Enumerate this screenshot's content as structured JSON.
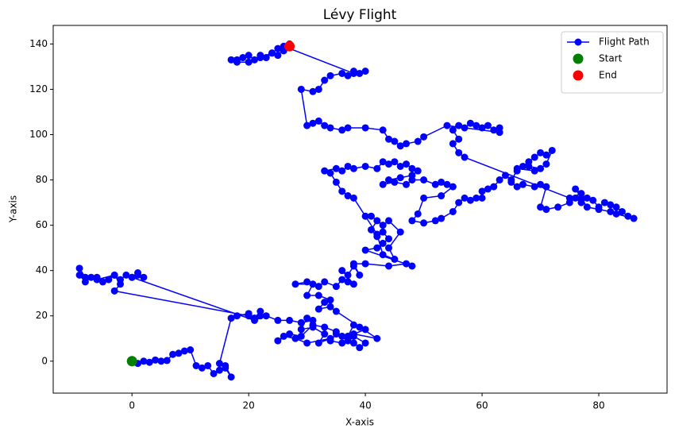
{
  "chart_data": {
    "type": "line",
    "title": "Lévy Flight",
    "x_label": "X-axis",
    "y_label": "Y-axis",
    "xlim": [
      -13.5,
      91.7
    ],
    "ylim": [
      -14.1,
      148.2
    ],
    "xticks": [
      0,
      20,
      40,
      60,
      80
    ],
    "yticks": [
      0,
      20,
      40,
      60,
      80,
      100,
      120,
      140
    ],
    "grid": false,
    "legend": "upper right",
    "series": [
      {
        "name": "Flight Path",
        "type": "line",
        "color": "#0000ff",
        "x": [
          0,
          1,
          2,
          3,
          4,
          5,
          6,
          7,
          8,
          9,
          10,
          11,
          12,
          13,
          14,
          15,
          16,
          17,
          16,
          15,
          17,
          18,
          20,
          21,
          22,
          22,
          21,
          20,
          -3,
          -2,
          -3,
          -4,
          -5,
          -6,
          -7,
          -8,
          -9,
          -9,
          -8,
          -6,
          -3,
          -2,
          -1,
          0,
          1,
          2,
          1,
          0,
          21,
          23,
          25,
          27,
          29,
          31,
          30,
          29,
          31,
          33,
          32,
          34,
          30,
          28,
          26,
          25,
          27,
          29,
          31,
          33,
          35,
          36,
          37,
          38,
          40,
          39,
          38,
          37,
          36,
          34,
          35,
          37,
          38,
          39,
          40,
          38,
          42,
          35,
          34,
          32,
          33,
          34,
          32,
          30,
          31,
          28,
          30,
          32,
          33,
          35,
          36,
          37,
          38,
          36,
          37,
          38,
          39,
          38,
          40,
          44,
          47,
          48,
          40,
          42,
          43,
          44,
          43,
          42,
          41,
          42,
          41,
          43,
          44,
          46,
          44,
          45,
          43,
          42,
          40,
          38,
          37,
          36,
          35,
          34,
          33,
          35,
          36,
          37,
          38,
          40,
          42,
          43,
          44,
          45,
          46,
          47,
          48,
          49,
          48,
          46,
          44,
          43,
          45,
          47,
          48,
          50,
          52,
          53,
          54,
          55,
          53,
          50,
          49,
          48,
          50,
          52,
          53,
          55,
          56,
          57,
          58,
          59,
          60,
          60,
          61,
          62,
          63,
          64,
          65,
          66,
          67,
          68,
          69,
          70,
          71,
          72,
          71,
          70,
          68,
          69,
          66,
          65,
          66,
          67,
          69,
          70,
          71,
          70,
          71,
          73,
          75,
          76,
          77,
          78,
          79,
          80,
          81,
          82,
          83,
          84,
          85,
          86,
          83,
          82,
          80,
          78,
          77,
          76,
          77,
          75,
          57,
          56,
          55,
          56,
          55,
          56,
          57,
          58,
          59,
          60,
          61,
          62,
          63,
          63,
          54,
          50,
          49,
          47,
          46,
          45,
          44,
          43,
          40,
          37,
          36,
          34,
          33,
          32,
          31,
          30,
          29,
          31,
          32,
          33,
          34,
          36,
          37,
          38,
          39,
          40,
          38,
          26,
          27,
          26,
          25,
          24,
          23,
          22,
          21,
          20,
          19,
          18,
          17,
          18,
          20,
          22,
          24,
          25,
          26,
          27
        ],
        "values": [
          0,
          -1,
          0,
          -0.5,
          0.5,
          0,
          0.3,
          3,
          3.5,
          4.5,
          5,
          -2,
          -3,
          -2,
          -5.5,
          -4,
          -3,
          -7,
          -2,
          -1,
          19,
          20,
          21,
          19,
          20,
          22,
          19,
          20,
          31,
          34,
          38,
          36,
          35,
          37,
          37,
          35,
          38,
          41,
          37,
          36,
          38,
          36,
          38,
          37,
          38,
          37,
          39,
          37,
          18,
          20,
          18,
          18,
          17,
          18,
          19,
          14,
          15,
          12,
          8,
          10,
          8,
          10,
          11,
          9,
          12,
          11,
          16,
          15,
          13,
          11,
          9,
          11,
          8,
          6,
          8,
          10,
          8,
          9,
          12,
          11,
          16,
          15,
          14,
          12,
          10,
          22,
          24,
          23,
          26,
          27,
          29,
          29,
          34,
          34,
          35,
          33,
          35,
          33,
          36,
          35,
          34,
          40,
          38,
          42,
          38,
          43,
          43,
          42,
          43,
          42,
          49,
          50,
          52,
          54,
          57,
          55,
          58,
          62,
          64,
          60,
          62,
          57,
          50,
          45,
          47,
          56,
          64,
          72,
          73,
          75,
          79,
          83,
          84,
          85,
          84,
          86,
          85,
          86,
          85,
          88,
          87,
          88,
          86,
          87,
          85,
          84,
          82,
          81,
          80,
          78,
          79,
          78,
          80,
          80,
          78,
          79,
          78,
          77,
          73,
          72,
          65,
          62,
          61,
          62,
          63,
          66,
          70,
          72,
          71,
          72,
          72,
          75,
          76,
          77,
          80,
          82,
          80,
          84,
          86,
          88,
          90,
          92,
          91,
          93,
          87,
          85,
          86,
          84,
          85,
          79,
          77,
          78,
          77,
          78,
          77,
          68,
          67,
          68,
          70,
          72,
          70,
          72,
          71,
          68,
          70,
          69,
          68,
          66,
          64,
          63,
          65,
          66,
          67,
          68,
          72,
          76,
          74,
          72,
          90,
          92,
          96,
          98,
          102,
          104,
          103,
          105,
          104,
          103,
          104,
          102,
          103,
          101,
          104,
          99,
          97,
          96,
          95,
          97,
          98,
          102,
          103,
          103,
          102,
          103,
          104,
          106,
          105,
          104,
          120,
          119,
          120,
          124,
          126,
          127,
          126,
          128,
          127,
          128,
          127,
          139,
          140,
          137,
          138,
          136,
          134,
          135,
          133,
          135,
          134,
          133,
          133,
          132,
          132,
          134,
          136,
          135,
          138,
          139
        ]
      },
      {
        "name": "Start",
        "type": "scatter",
        "color": "#008000",
        "x": [
          0
        ],
        "values": [
          0
        ]
      },
      {
        "name": "End",
        "type": "scatter",
        "color": "#ff0000",
        "x": [
          27
        ],
        "values": [
          139
        ]
      }
    ]
  }
}
